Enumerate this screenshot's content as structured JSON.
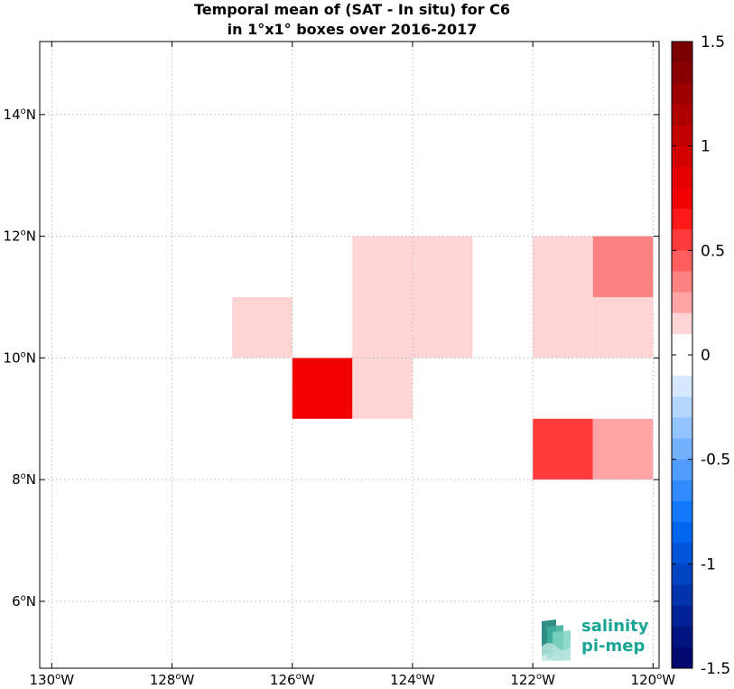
{
  "title": {
    "line1": "Temporal mean of (SAT - In situ) for C6",
    "line2": "in 1°x1° boxes over 2016-2017"
  },
  "logo": {
    "line1": "salinity",
    "line2": "pi-mep",
    "icon": "wave-layers-icon"
  },
  "chart_data": {
    "type": "heatmap",
    "title": "Temporal mean of (SAT - In situ) for C6 in 1°x1° boxes over 2016-2017",
    "xlim": [
      -130.2,
      -119.9
    ],
    "ylim": [
      4.9,
      15.2
    ],
    "x_ticks": [
      -130,
      -128,
      -126,
      -124,
      -122,
      -120
    ],
    "x_tick_labels": [
      "130°W",
      "128°W",
      "126°W",
      "124°W",
      "122°W",
      "120°W"
    ],
    "y_ticks": [
      6,
      8,
      10,
      12,
      14
    ],
    "y_tick_labels": [
      "6°N",
      "8°N",
      "10°N",
      "12°N",
      "14°N"
    ],
    "grid": true,
    "cells": [
      {
        "lon": [
          -127,
          -126
        ],
        "lat": [
          10,
          11
        ],
        "value": 0.15
      },
      {
        "lon": [
          -125,
          -124
        ],
        "lat": [
          11,
          12
        ],
        "value": 0.15
      },
      {
        "lon": [
          -124,
          -123
        ],
        "lat": [
          11,
          12
        ],
        "value": 0.15
      },
      {
        "lon": [
          -125,
          -124
        ],
        "lat": [
          10,
          11
        ],
        "value": 0.15
      },
      {
        "lon": [
          -124,
          -123
        ],
        "lat": [
          10,
          11
        ],
        "value": 0.15
      },
      {
        "lon": [
          -126,
          -125
        ],
        "lat": [
          9,
          10
        ],
        "value": 0.75
      },
      {
        "lon": [
          -125,
          -124
        ],
        "lat": [
          9,
          10
        ],
        "value": 0.15
      },
      {
        "lon": [
          -122,
          -121
        ],
        "lat": [
          11,
          12
        ],
        "value": 0.15
      },
      {
        "lon": [
          -121,
          -120
        ],
        "lat": [
          11,
          12
        ],
        "value": 0.35
      },
      {
        "lon": [
          -122,
          -121
        ],
        "lat": [
          10,
          11
        ],
        "value": 0.15
      },
      {
        "lon": [
          -121,
          -120
        ],
        "lat": [
          10,
          11
        ],
        "value": 0.15
      },
      {
        "lon": [
          -122,
          -121
        ],
        "lat": [
          8,
          9
        ],
        "value": 0.6
      },
      {
        "lon": [
          -121,
          -120
        ],
        "lat": [
          8,
          9
        ],
        "value": 0.25
      }
    ],
    "colorbar": {
      "range": [
        -1.5,
        1.5
      ],
      "ticks": [
        1.5,
        1,
        0.5,
        0,
        -0.5,
        -1,
        -1.5
      ],
      "tick_labels": [
        "1.5",
        "1",
        "0.5",
        "0",
        "-0.5",
        "-1",
        "-1.5"
      ],
      "colors_top_to_bottom": [
        "#7a0000",
        "#8a0000",
        "#9c0000",
        "#ae0000",
        "#c00000",
        "#d20000",
        "#e40000",
        "#f20000",
        "#ff1a1a",
        "#ff3b3b",
        "#ff5e5e",
        "#ff8282",
        "#ffa5a5",
        "#ffd4d4",
        "#ffffff",
        "#ffffff",
        "#d6e8ff",
        "#b5d6ff",
        "#94c4ff",
        "#73b1ff",
        "#529eff",
        "#318bff",
        "#1178ff",
        "#0066ee",
        "#0055d8",
        "#0044c2",
        "#0033ac",
        "#002296",
        "#001480",
        "#000a6e"
      ]
    }
  }
}
